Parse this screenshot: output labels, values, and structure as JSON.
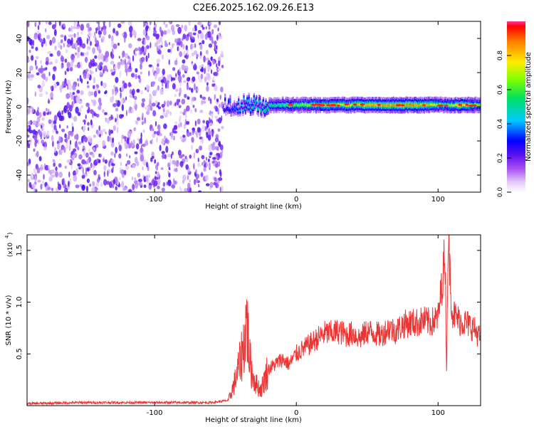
{
  "title": "C2E6.2025.162.09.26.E13",
  "chart_data": [
    {
      "type": "heatmap",
      "xlabel": "Height of straight line (km)",
      "ylabel": "Frequency (Hz)",
      "xlim": [
        -190,
        130
      ],
      "ylim": [
        -50,
        50
      ],
      "x_ticks": [
        -100,
        0,
        100
      ],
      "y_ticks": [
        -40,
        -20,
        0,
        20,
        40
      ],
      "colorbar": {
        "label": "Normalized spectral amplitude",
        "range": [
          0.0,
          1.0
        ],
        "ticks": [
          "0.0",
          "0.2",
          "0.4",
          "0.6",
          "0.8"
        ]
      },
      "noise_region_x": [
        -190,
        -52
      ],
      "ridge": {
        "x_start": -52,
        "x_end": 130,
        "frequency_hz": 1,
        "amplitude_profile": [
          [
            -52,
            0.25
          ],
          [
            -45,
            0.35
          ],
          [
            -35,
            0.45
          ],
          [
            -25,
            0.5
          ],
          [
            -10,
            0.55
          ],
          [
            0,
            0.6
          ],
          [
            20,
            0.7
          ],
          [
            40,
            0.75
          ],
          [
            60,
            0.8
          ],
          [
            80,
            0.85
          ],
          [
            95,
            0.75
          ],
          [
            105,
            0.6
          ],
          [
            115,
            0.8
          ],
          [
            130,
            0.6
          ]
        ]
      }
    },
    {
      "type": "line",
      "xlabel": "Height of straight line (km)",
      "ylabel": "SNR (10 * v/v)",
      "y_scale_label": "(x10",
      "y_scale_exp": "4",
      "xlim": [
        -190,
        130
      ],
      "ylim": [
        0,
        1.65
      ],
      "x_ticks": [
        -100,
        0,
        100
      ],
      "y_ticks": [
        "0.5",
        "1.0",
        "1.5"
      ],
      "color": "#ee3333",
      "series": [
        {
          "x": [
            -190,
            -150,
            -100,
            -60,
            -48,
            -44,
            -40,
            -37,
            -35,
            -33,
            -31,
            -28,
            -25,
            -20,
            -15,
            -10,
            -5,
            0,
            5,
            10,
            15,
            20,
            25,
            30,
            35,
            40,
            45,
            50,
            55,
            60,
            65,
            70,
            75,
            80,
            85,
            90,
            95,
            100,
            103,
            105,
            106,
            107,
            108,
            110,
            115,
            120,
            125,
            130
          ],
          "y": [
            0.02,
            0.03,
            0.03,
            0.03,
            0.05,
            0.2,
            0.4,
            0.6,
            0.85,
            0.45,
            0.3,
            0.2,
            0.15,
            0.35,
            0.4,
            0.45,
            0.4,
            0.5,
            0.55,
            0.6,
            0.65,
            0.7,
            0.7,
            0.72,
            0.68,
            0.7,
            0.65,
            0.72,
            0.7,
            0.68,
            0.75,
            0.72,
            0.78,
            0.8,
            0.8,
            0.82,
            0.8,
            0.85,
            1.2,
            1.5,
            0.3,
            1.62,
            1.4,
            0.9,
            0.82,
            0.8,
            0.75,
            0.65
          ]
        }
      ]
    }
  ]
}
